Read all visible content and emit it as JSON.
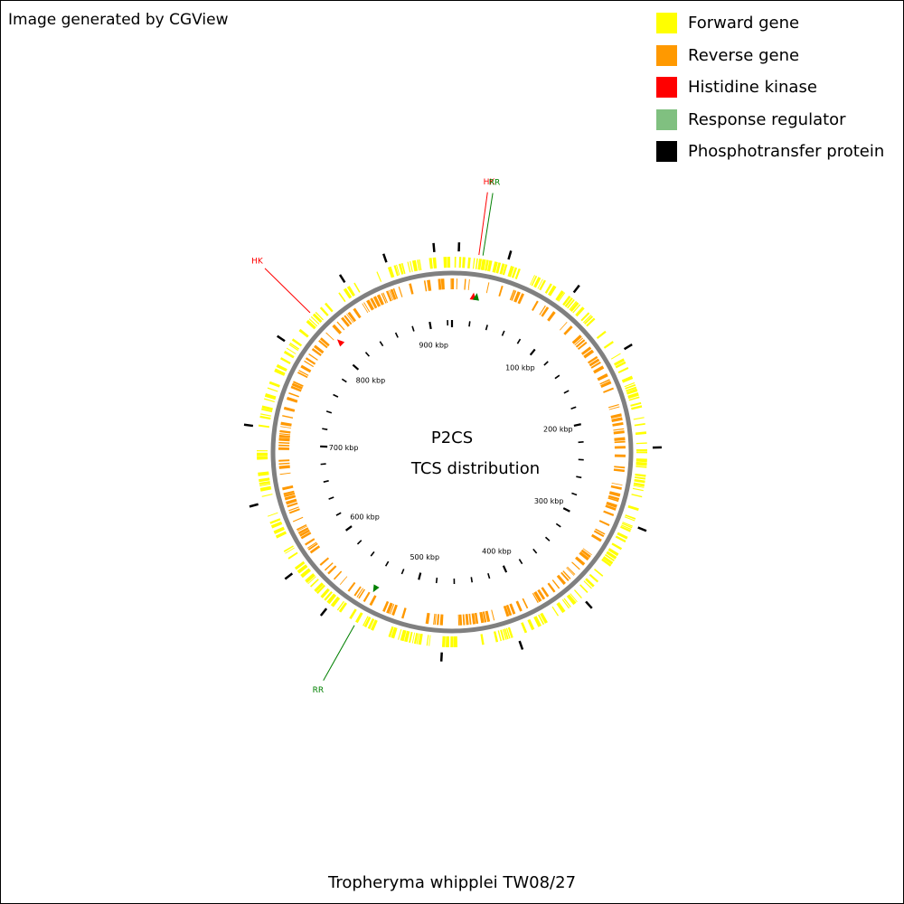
{
  "credit": "Image generated by CGView",
  "organism": "Tropheryma whipplei TW08/27",
  "center": {
    "line1": "P2CS",
    "line2": "TCS distribution"
  },
  "legend": [
    {
      "label": "Forward gene",
      "color": "#ffff00"
    },
    {
      "label": "Reverse gene",
      "color": "#ff9900"
    },
    {
      "label": "Histidine kinase",
      "color": "#ff0000"
    },
    {
      "label": "Response regulator",
      "color": "#80c080"
    },
    {
      "label": "Phosphotransfer protein",
      "color": "#000000"
    }
  ],
  "colors": {
    "forward": "#ffff00",
    "reverse": "#ff9900",
    "backbone": "#808080",
    "hk": "#ff0000",
    "rr": "#008000",
    "ticks": "#000000"
  },
  "genome": {
    "length_kbp": 925,
    "tick_labels": [
      {
        "kbp": 100,
        "text": "100 kbp"
      },
      {
        "kbp": 200,
        "text": "200 kbp"
      },
      {
        "kbp": 300,
        "text": "300 kbp"
      },
      {
        "kbp": 400,
        "text": "400 kbp"
      },
      {
        "kbp": 500,
        "text": "500 kbp"
      },
      {
        "kbp": 600,
        "text": "600 kbp"
      },
      {
        "kbp": 700,
        "text": "700 kbp"
      },
      {
        "kbp": 800,
        "text": "800 kbp"
      },
      {
        "kbp": 900,
        "text": "900 kbp"
      }
    ],
    "callouts": [
      {
        "kbp": 20,
        "label": "HK",
        "type": "hk"
      },
      {
        "kbp": 23,
        "label": "RR",
        "type": "rr"
      },
      {
        "kbp": 808,
        "label": "HK",
        "type": "hk"
      },
      {
        "kbp": 538,
        "label": "RR",
        "type": "rr"
      }
    ],
    "phospho_kbp": [
      5,
      42,
      96,
      152,
      228,
      288,
      355,
      412,
      470,
      562,
      598,
      655,
      713,
      780,
      842,
      876,
      912
    ]
  }
}
